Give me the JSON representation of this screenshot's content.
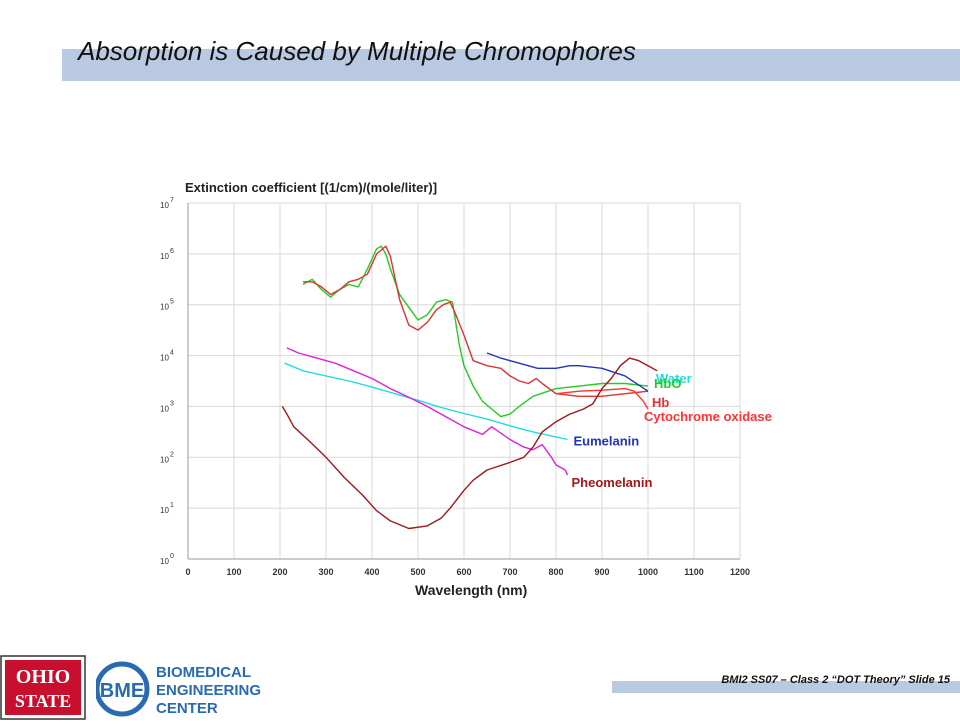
{
  "slide": {
    "title": "Absorption is Caused by Multiple Chromophores",
    "footer": "BMI2 SS07 – Class 2 “DOT Theory” Slide 15"
  },
  "logos": {
    "osu_text": "OHIO STATE",
    "bme_mark": "BME",
    "bme_lines": [
      "BIOMEDICAL",
      "ENGINEERING",
      "CENTER"
    ]
  },
  "colors": {
    "title_band": "#b9c9e2",
    "water": "#2233bb",
    "hbo": "#22cc22",
    "cyto_ox": "#ff3333",
    "hb": "#dd3333",
    "eumelanin": "#22dddd",
    "pheomelanin": "#dd22dd",
    "brown": "#a01818"
  },
  "chart_data": {
    "type": "line",
    "title": "Extinction coefficient [(1/cm)/(mole/liter)]",
    "xlabel": "Wavelength (nm)",
    "ylabel": "",
    "xlim": [
      0,
      1200
    ],
    "ylim_log10": [
      0,
      7
    ],
    "y_scale": "log",
    "grid": true,
    "x_ticks": [
      "0",
      "100",
      "200",
      "300",
      "400",
      "500",
      "600",
      "700",
      "800",
      "900",
      "1000",
      "1100",
      "1200"
    ],
    "y_ticks": [
      {
        "base": "10",
        "exp": "0"
      },
      {
        "base": "10",
        "exp": "1"
      },
      {
        "base": "10",
        "exp": "2"
      },
      {
        "base": "10",
        "exp": "3"
      },
      {
        "base": "10",
        "exp": "4"
      },
      {
        "base": "10",
        "exp": "5"
      },
      {
        "base": "10",
        "exp": "6"
      },
      {
        "base": "10",
        "exp": "7"
      }
    ],
    "series": [
      {
        "key": "hbo",
        "color": "#22cc22",
        "x": [
          250,
          270,
          290,
          310,
          330,
          350,
          370,
          390,
          410,
          420,
          430,
          440,
          460,
          480,
          500,
          520,
          540,
          560,
          575,
          590,
          600,
          620,
          640,
          660,
          680,
          700,
          720,
          750,
          800,
          850,
          900,
          950,
          1000
        ],
        "y": [
          5.4,
          5.5,
          5.3,
          5.15,
          5.3,
          5.4,
          5.35,
          5.7,
          6.1,
          6.15,
          6.0,
          5.7,
          5.2,
          4.95,
          4.7,
          4.8,
          5.05,
          5.1,
          5.05,
          4.2,
          3.8,
          3.4,
          3.1,
          2.95,
          2.8,
          2.85,
          3.0,
          3.2,
          3.35,
          3.4,
          3.45,
          3.45,
          3.4
        ]
      },
      {
        "key": "hb",
        "color": "#dd3333",
        "x": [
          250,
          270,
          290,
          310,
          330,
          350,
          370,
          390,
          410,
          430,
          440,
          460,
          480,
          500,
          520,
          540,
          555,
          570,
          580,
          600,
          620,
          650,
          680,
          700,
          720,
          740,
          757,
          770,
          800,
          850,
          900,
          950,
          1000
        ],
        "y": [
          5.45,
          5.45,
          5.35,
          5.2,
          5.3,
          5.45,
          5.5,
          5.6,
          6.0,
          6.15,
          5.95,
          5.1,
          4.6,
          4.5,
          4.65,
          4.9,
          5.0,
          5.05,
          4.85,
          4.4,
          3.9,
          3.8,
          3.75,
          3.6,
          3.5,
          3.45,
          3.55,
          3.45,
          3.25,
          3.2,
          3.2,
          3.25,
          3.3
        ]
      },
      {
        "key": "water",
        "color": "#2233bb",
        "x": [
          650,
          680,
          720,
          760,
          800,
          830,
          850,
          900,
          950,
          1000
        ],
        "y": [
          4.05,
          3.95,
          3.85,
          3.75,
          3.75,
          3.8,
          3.8,
          3.75,
          3.6,
          3.3
        ]
      },
      {
        "key": "cyto_ox",
        "color": "#ff3333",
        "x": [
          800,
          850,
          900,
          950,
          970,
          990,
          1000
        ],
        "y": [
          3.25,
          3.3,
          3.32,
          3.35,
          3.3,
          3.1,
          2.95
        ]
      },
      {
        "key": "eumelanin",
        "color": "#22dddd",
        "x": [
          210,
          250,
          300,
          350,
          400,
          450,
          500,
          550,
          600,
          650,
          700,
          750,
          800,
          825
        ],
        "y": [
          3.85,
          3.7,
          3.6,
          3.5,
          3.38,
          3.25,
          3.12,
          2.98,
          2.86,
          2.75,
          2.62,
          2.5,
          2.4,
          2.35
        ]
      },
      {
        "key": "pheomelanin",
        "color": "#dd22dd",
        "x": [
          215,
          240,
          280,
          320,
          360,
          400,
          440,
          480,
          520,
          560,
          600,
          640,
          660,
          700,
          730,
          750,
          770,
          790,
          800,
          820,
          825
        ],
        "y": [
          4.15,
          4.05,
          3.95,
          3.85,
          3.7,
          3.55,
          3.35,
          3.18,
          3.0,
          2.8,
          2.6,
          2.45,
          2.6,
          2.35,
          2.2,
          2.15,
          2.25,
          2.0,
          1.85,
          1.75,
          1.65
        ]
      },
      {
        "key": "brown",
        "color": "#a01818",
        "x": [
          205,
          215,
          230,
          260,
          300,
          340,
          380,
          410,
          440,
          480,
          520,
          550,
          570,
          600,
          620,
          650,
          700,
          730,
          750,
          770,
          800,
          830,
          860,
          880,
          900,
          920,
          940,
          960,
          980,
          1000,
          1020
        ],
        "y": [
          3.0,
          2.85,
          2.6,
          2.35,
          2.0,
          1.6,
          1.25,
          0.95,
          0.75,
          0.6,
          0.65,
          0.8,
          1.0,
          1.35,
          1.55,
          1.75,
          1.9,
          2.0,
          2.2,
          2.5,
          2.7,
          2.85,
          2.95,
          3.05,
          3.35,
          3.55,
          3.8,
          3.95,
          3.9,
          3.8,
          3.7
        ]
      }
    ],
    "labels": [
      {
        "key": "water",
        "text": "Water",
        "color": "#22dddd"
      },
      {
        "key": "hbo",
        "text": "HbO",
        "color": "#22cc22"
      },
      {
        "key": "cyto_ox",
        "text": "Cytochrome oxidase",
        "color": "#ff3333"
      },
      {
        "key": "eumelanin",
        "text": "Eumelanin",
        "color": "#2233bb"
      },
      {
        "key": "hb",
        "text": "Hb",
        "color": "#dd3333"
      },
      {
        "key": "pheomelanin",
        "text": "Pheomelanin",
        "color": "#a01818"
      }
    ]
  }
}
